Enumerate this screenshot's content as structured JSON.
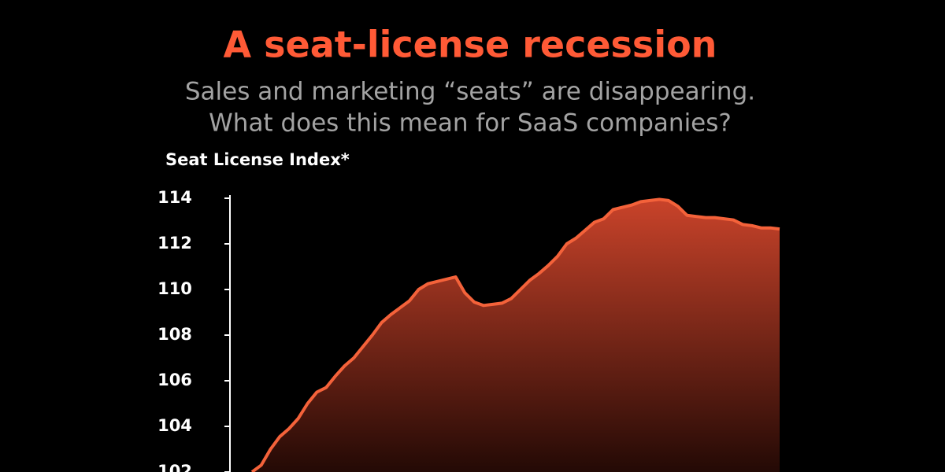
{
  "chart_data": {
    "type": "area",
    "title": "A seat-license recession",
    "subtitle": [
      "Sales and marketing “seats” are disappearing.",
      "What does this mean for SaaS companies?"
    ],
    "y_label": "Seat License Index*",
    "color": "#f4623a",
    "categories": [
      null,
      null,
      null,
      null,
      null,
      null,
      null,
      null,
      null,
      null,
      null,
      null,
      null,
      null,
      null,
      null,
      null,
      null,
      null,
      null,
      null,
      null,
      null,
      null,
      null,
      null,
      null,
      null,
      null,
      null,
      null,
      null,
      null,
      null,
      null,
      null,
      null,
      null,
      null,
      null,
      null,
      null,
      null,
      null,
      null,
      null,
      null,
      null,
      null,
      null,
      null,
      null,
      null,
      null,
      null,
      null,
      null,
      null
    ],
    "values": [
      102.0,
      102.3,
      103.0,
      103.55,
      103.9,
      104.35,
      105.0,
      105.5,
      105.7,
      106.2,
      106.65,
      107.0,
      107.5,
      108.0,
      108.55,
      108.9,
      109.2,
      109.5,
      110.0,
      110.25,
      110.35,
      110.45,
      110.55,
      109.85,
      109.45,
      109.3,
      109.35,
      109.4,
      109.6,
      110.0,
      110.4,
      110.7,
      111.05,
      111.45,
      112.0,
      112.25,
      112.6,
      112.95,
      113.1,
      113.5,
      113.6,
      113.7,
      113.85,
      113.9,
      113.95,
      113.9,
      113.65,
      113.25,
      113.2,
      113.15,
      113.15,
      113.1,
      113.05,
      112.85,
      112.8,
      112.7,
      112.7,
      112.65
    ],
    "ylim": [
      102,
      114
    ],
    "yticks": [
      102,
      104,
      106,
      108,
      110,
      112,
      114
    ]
  }
}
